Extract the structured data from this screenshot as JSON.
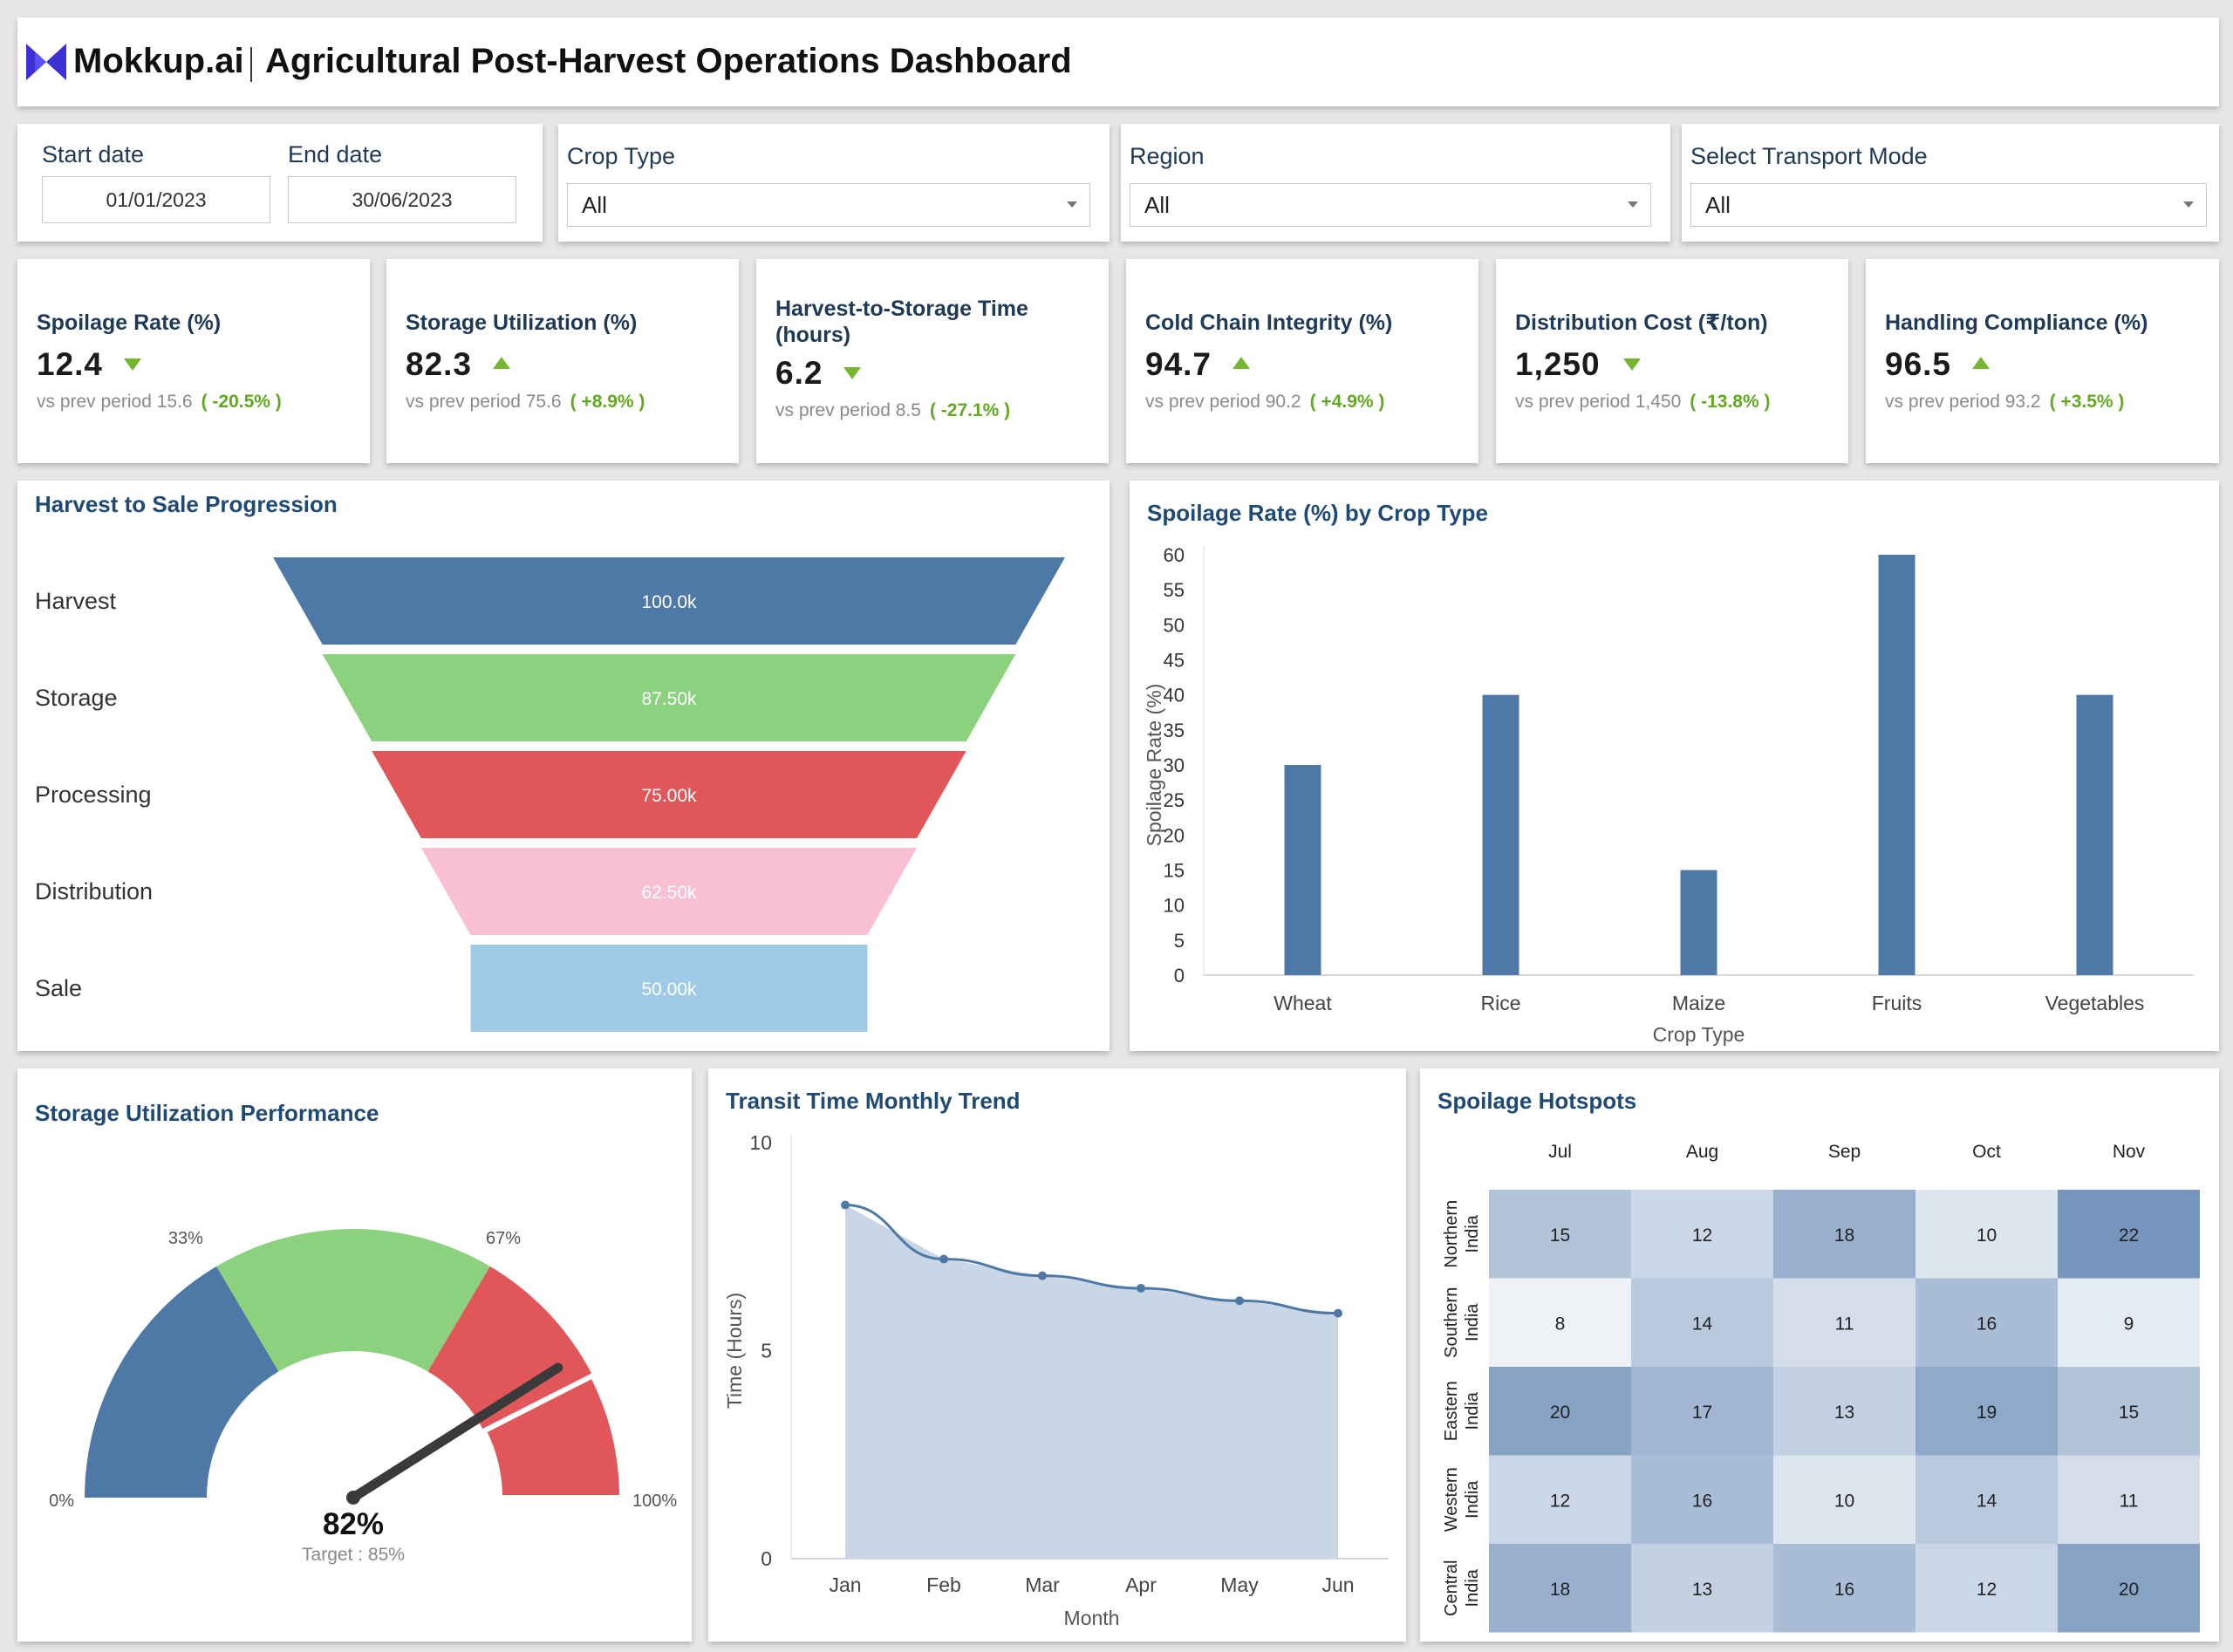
{
  "header": {
    "brand": "Mokkup.ai",
    "title": "Agricultural Post-Harvest Operations Dashboard",
    "logo_icon": "mokkup-logo-icon",
    "brand_color": "#3b2fd6"
  },
  "filters": {
    "start_date_label": "Start date",
    "start_date_value": "01/01/2023",
    "end_date_label": "End date",
    "end_date_value": "30/06/2023",
    "crop_type_label": "Crop Type",
    "crop_type_value": "All",
    "region_label": "Region",
    "region_value": "All",
    "transport_label": "Select Transport Mode",
    "transport_value": "All"
  },
  "kpis": [
    {
      "label": "Spoilage Rate (%)",
      "value": "12.4",
      "trend": "down",
      "prev": "vs prev period 15.6",
      "change": "( -20.5% )"
    },
    {
      "label": "Storage Utilization (%)",
      "value": "82.3",
      "trend": "up",
      "prev": "vs prev period 75.6",
      "change": "( +8.9% )"
    },
    {
      "label": "Harvest-to-Storage Time (hours)",
      "value": "6.2",
      "trend": "down",
      "prev": "vs prev period 8.5",
      "change": "( -27.1% )"
    },
    {
      "label": "Cold Chain Integrity (%)",
      "value": "94.7",
      "trend": "up",
      "prev": "vs prev period 90.2",
      "change": "( +4.9% )"
    },
    {
      "label": "Distribution Cost (₹/ton)",
      "value": "1,250",
      "trend": "down",
      "prev": "vs prev period 1,450",
      "change": "( -13.8% )"
    },
    {
      "label": "Handling Compliance (%)",
      "value": "96.5",
      "trend": "up",
      "prev": "vs prev period 93.2",
      "change": "( +3.5% )"
    }
  ],
  "funnel": {
    "title": "Harvest to Sale Progression",
    "stages": [
      {
        "label": "Harvest",
        "value": 100000,
        "text": "100.0k",
        "color": "#4e79a7"
      },
      {
        "label": "Storage",
        "value": 87500,
        "text": "87.50k",
        "color": "#8cd17d"
      },
      {
        "label": "Processing",
        "value": 75000,
        "text": "75.00k",
        "color": "#e15759"
      },
      {
        "label": "Distribution",
        "value": 62500,
        "text": "62.50k",
        "color": "#f9c0d4"
      },
      {
        "label": "Sale",
        "value": 50000,
        "text": "50.00k",
        "color": "#a0cbe8"
      }
    ]
  },
  "chart_data": [
    {
      "type": "bar",
      "title": "Spoilage Rate (%) by Crop Type",
      "categories": [
        "Wheat",
        "Rice",
        "Maize",
        "Fruits",
        "Vegetables"
      ],
      "values": [
        30,
        40,
        15,
        60,
        40
      ],
      "xlabel": "Crop Type",
      "ylabel": "Spoilage Rate (%)",
      "ylim": [
        0,
        60
      ],
      "yticks": [
        0,
        5,
        10,
        15,
        20,
        25,
        30,
        35,
        40,
        45,
        50,
        55,
        60
      ],
      "color": "#4e79a7",
      "grid": false
    },
    {
      "type": "area",
      "title": "Transit Time Monthly Trend",
      "categories": [
        "Jan",
        "Feb",
        "Mar",
        "Apr",
        "May",
        "Jun"
      ],
      "values": [
        8.5,
        7.2,
        6.8,
        6.5,
        6.2,
        5.9
      ],
      "xlabel": "Month",
      "ylabel": "Time (Hours)",
      "ylim": [
        0,
        10
      ],
      "yticks": [
        0,
        5,
        10
      ],
      "line_color": "#4e79a7",
      "fill_color": "#c8d6e5",
      "grid": false
    },
    {
      "type": "heatmap",
      "title": "Spoilage Hotspots",
      "columns": [
        "Jul",
        "Aug",
        "Sep",
        "Oct",
        "Nov"
      ],
      "rows": [
        {
          "l1": "Northern",
          "l2": "India"
        },
        {
          "l1": "Southern",
          "l2": "India"
        },
        {
          "l1": "Eastern",
          "l2": "India"
        },
        {
          "l1": "Western",
          "l2": "India"
        },
        {
          "l1": "Central",
          "l2": "India"
        }
      ],
      "values": [
        [
          15,
          12,
          18,
          10,
          22
        ],
        [
          8,
          14,
          11,
          16,
          9
        ],
        [
          20,
          17,
          13,
          19,
          15
        ],
        [
          12,
          16,
          10,
          14,
          11
        ],
        [
          18,
          13,
          16,
          12,
          20
        ]
      ],
      "min": 8,
      "max": 22,
      "low_color": "#eef2f7",
      "high_color": "#7595bd"
    }
  ],
  "gauge": {
    "title": "Storage Utilization Performance",
    "value": 82,
    "value_text": "82%",
    "target_text": "Target : 85%",
    "ticks": [
      "0%",
      "33%",
      "67%",
      "100%"
    ],
    "bands": [
      {
        "from": 0,
        "to": 33,
        "color": "#4e79a7"
      },
      {
        "from": 33,
        "to": 67,
        "color": "#8cd17d"
      },
      {
        "from": 67,
        "to": 100,
        "color": "#e15759"
      }
    ],
    "target": 85
  }
}
